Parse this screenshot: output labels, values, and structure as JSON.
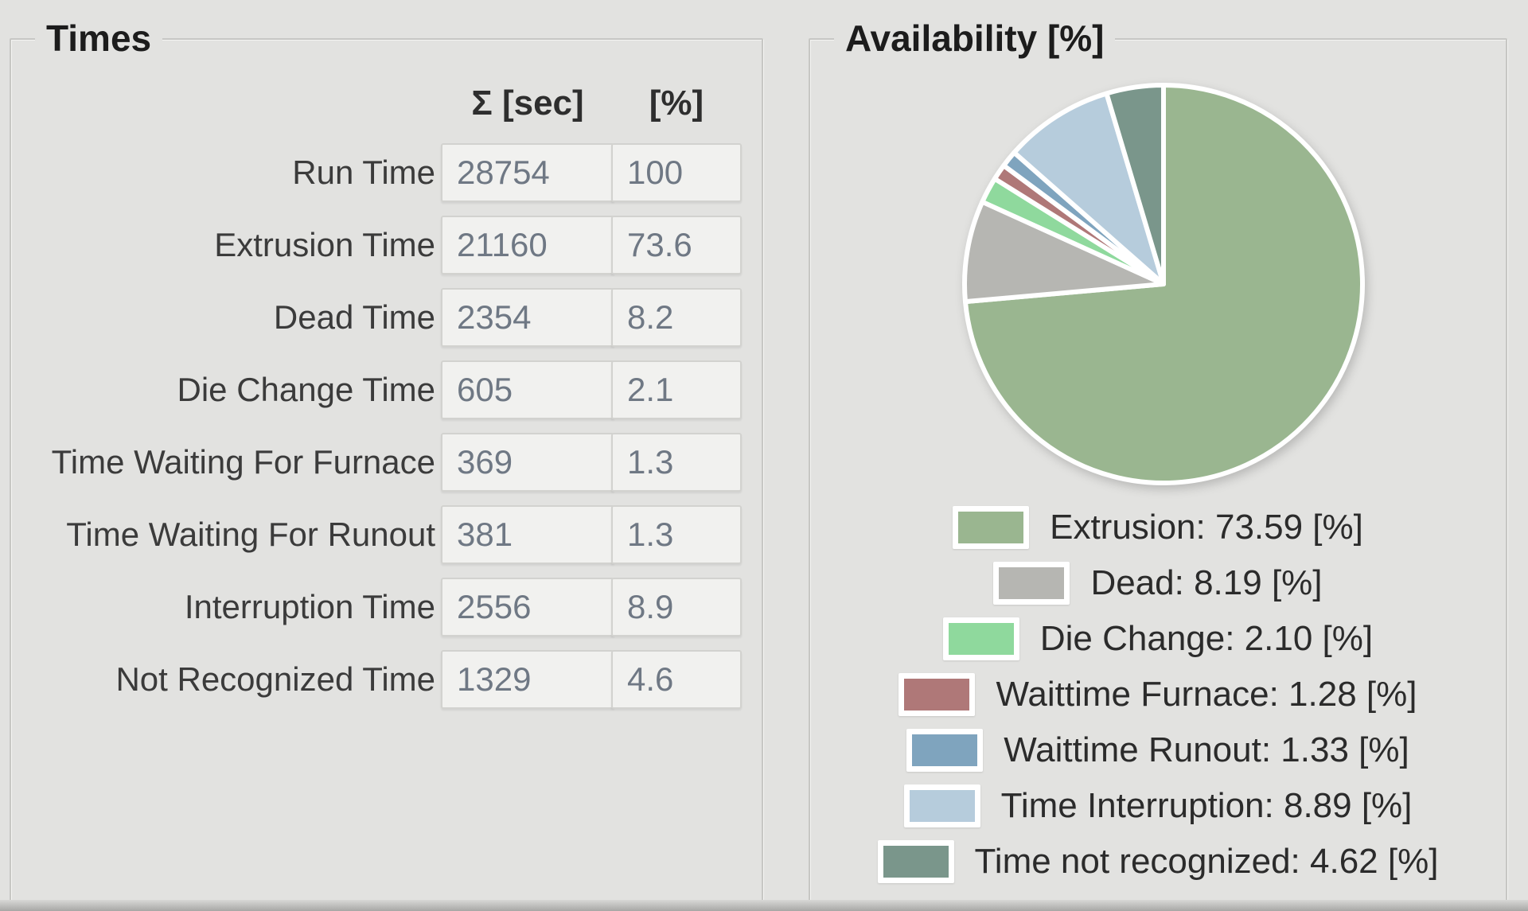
{
  "times_panel": {
    "title": "Times",
    "col_headers": {
      "sum": "Σ [sec]",
      "pct": "[%]"
    },
    "rows": [
      {
        "label": "Run Time",
        "sec": "28754",
        "pct": "100"
      },
      {
        "label": "Extrusion Time",
        "sec": "21160",
        "pct": "73.6"
      },
      {
        "label": "Dead Time",
        "sec": "2354",
        "pct": "8.2"
      },
      {
        "label": "Die Change Time",
        "sec": "605",
        "pct": "2.1"
      },
      {
        "label": "Time Waiting For Furnace",
        "sec": "369",
        "pct": "1.3"
      },
      {
        "label": "Time Waiting For Runout",
        "sec": "381",
        "pct": "1.3"
      },
      {
        "label": "Interruption Time",
        "sec": "2556",
        "pct": "8.9"
      },
      {
        "label": "Not Recognized Time",
        "sec": "1329",
        "pct": "4.6"
      }
    ]
  },
  "availability_panel": {
    "title": "Availability [%]",
    "legend": [
      {
        "text": "Extrusion: 73.59 [%]"
      },
      {
        "text": "Dead: 8.19 [%]"
      },
      {
        "text": "Die Change: 2.10 [%]"
      },
      {
        "text": "Waittime Furnace: 1.28 [%]"
      },
      {
        "text": "Waittime Runout: 1.33 [%]"
      },
      {
        "text": "Time Interruption: 8.89 [%]"
      },
      {
        "text": "Time not recognized: 4.62 [%]"
      }
    ]
  },
  "chart_data": {
    "type": "pie",
    "title": "Availability [%]",
    "labels": [
      "Extrusion",
      "Dead",
      "Die Change",
      "Waittime Furnace",
      "Waittime Runout",
      "Time Interruption",
      "Time not recognized"
    ],
    "values": [
      73.59,
      8.19,
      2.1,
      1.28,
      1.33,
      8.89,
      4.62
    ],
    "unit": "[%]",
    "colors": [
      "#9ab690",
      "#b6b6b2",
      "#8fd99d",
      "#af7878",
      "#7fa4be",
      "#b6ccdc",
      "#7a968b"
    ],
    "start_angle_deg": 0,
    "direction": "clockwise",
    "slice_border_color": "#ffffff",
    "legend_position": "bottom",
    "grid": false
  }
}
